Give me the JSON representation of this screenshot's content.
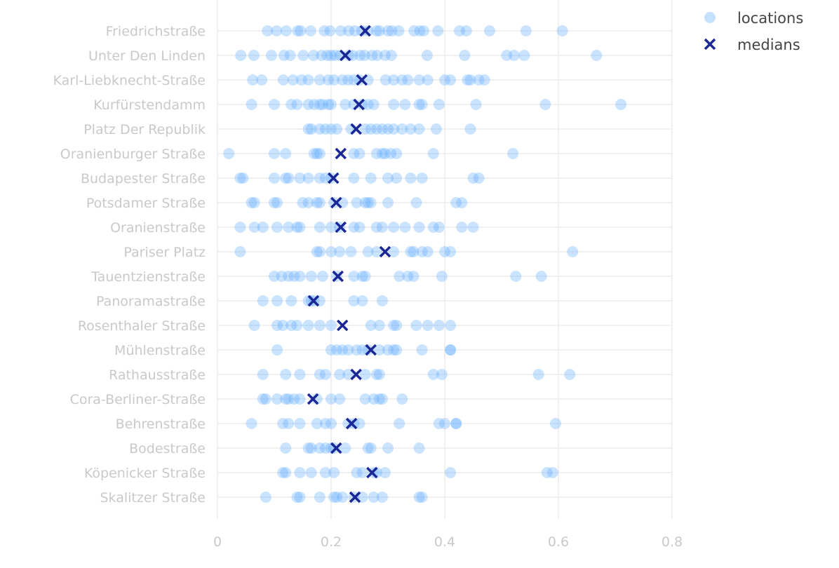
{
  "chart_data": {
    "type": "scatter",
    "title": "",
    "xlabel": "",
    "ylabel": "",
    "xlim": [
      0,
      0.8
    ],
    "xticks": [
      0,
      0.2,
      0.4,
      0.6,
      0.8
    ],
    "xtick_labels": [
      "0",
      "0.2",
      "0.4",
      "0.6",
      "0.8"
    ],
    "grid": true,
    "legend_position": "top-right",
    "legend": [
      "locations",
      "medians"
    ],
    "colors": {
      "locations": "#5aa9ff",
      "medians": "#1c2796",
      "grid": "#ececec",
      "labels": "#c9c9c9"
    },
    "categories": [
      "Friedrichstraße",
      "Unter Den Linden",
      "Karl-Liebknecht-Straße",
      "Kurfürstendamm",
      "Platz Der Republik",
      "Oranienburger Straße",
      "Budapester Straße",
      "Potsdamer Straße",
      "Oranienstraße",
      "Pariser Platz",
      "Tauentzienstraße",
      "Panoramastraße",
      "Rosenthaler Straße",
      "Mühlenstraße",
      "Rathausstraße",
      "Cora-Berliner-Straße",
      "Behrenstraße",
      "Bodestraße",
      "Köpenicker Straße",
      "Skalitzer Straße"
    ],
    "medians": [
      0.26,
      0.225,
      0.254,
      0.249,
      0.244,
      0.217,
      0.204,
      0.209,
      0.217,
      0.295,
      0.212,
      0.169,
      0.22,
      0.27,
      0.244,
      0.168,
      0.236,
      0.209,
      0.272,
      0.242
    ],
    "locations": [
      [
        0.088,
        0.104,
        0.121,
        0.141,
        0.146,
        0.164,
        0.188,
        0.198,
        0.217,
        0.231,
        0.242,
        0.254,
        0.265,
        0.28,
        0.285,
        0.3,
        0.307,
        0.319,
        0.346,
        0.356,
        0.363,
        0.388,
        0.426,
        0.438,
        0.479,
        0.543,
        0.607
      ],
      [
        0.041,
        0.064,
        0.095,
        0.117,
        0.128,
        0.151,
        0.169,
        0.183,
        0.193,
        0.2,
        0.207,
        0.216,
        0.231,
        0.238,
        0.251,
        0.259,
        0.272,
        0.281,
        0.295,
        0.306,
        0.369,
        0.435,
        0.509,
        0.522,
        0.54,
        0.667
      ],
      [
        0.062,
        0.078,
        0.116,
        0.133,
        0.148,
        0.16,
        0.18,
        0.195,
        0.205,
        0.22,
        0.23,
        0.24,
        0.25,
        0.265,
        0.296,
        0.31,
        0.325,
        0.335,
        0.355,
        0.37,
        0.4,
        0.41,
        0.44,
        0.445,
        0.46,
        0.47
      ],
      [
        0.06,
        0.1,
        0.13,
        0.14,
        0.16,
        0.17,
        0.18,
        0.185,
        0.195,
        0.2,
        0.225,
        0.24,
        0.255,
        0.265,
        0.275,
        0.31,
        0.33,
        0.355,
        0.36,
        0.39,
        0.455,
        0.577,
        0.71
      ],
      [
        0.16,
        0.165,
        0.18,
        0.19,
        0.2,
        0.21,
        0.235,
        0.26,
        0.27,
        0.28,
        0.29,
        0.3,
        0.31,
        0.325,
        0.34,
        0.355,
        0.385,
        0.445
      ],
      [
        0.02,
        0.1,
        0.12,
        0.17,
        0.175,
        0.18,
        0.24,
        0.25,
        0.28,
        0.29,
        0.295,
        0.305,
        0.315,
        0.38,
        0.52
      ],
      [
        0.04,
        0.045,
        0.1,
        0.12,
        0.125,
        0.145,
        0.16,
        0.18,
        0.19,
        0.2,
        0.24,
        0.27,
        0.3,
        0.315,
        0.34,
        0.36,
        0.45,
        0.46
      ],
      [
        0.06,
        0.065,
        0.1,
        0.105,
        0.15,
        0.16,
        0.175,
        0.18,
        0.205,
        0.22,
        0.245,
        0.26,
        0.265,
        0.27,
        0.3,
        0.35,
        0.42,
        0.43
      ],
      [
        0.04,
        0.065,
        0.08,
        0.105,
        0.125,
        0.14,
        0.145,
        0.18,
        0.2,
        0.215,
        0.24,
        0.25,
        0.28,
        0.29,
        0.31,
        0.33,
        0.355,
        0.38,
        0.39,
        0.43,
        0.45
      ],
      [
        0.04,
        0.175,
        0.18,
        0.2,
        0.215,
        0.235,
        0.265,
        0.28,
        0.31,
        0.34,
        0.345,
        0.36,
        0.37,
        0.4,
        0.41,
        0.625
      ],
      [
        0.1,
        0.113,
        0.125,
        0.135,
        0.145,
        0.165,
        0.185,
        0.21,
        0.24,
        0.255,
        0.26,
        0.32,
        0.335,
        0.345,
        0.395,
        0.525,
        0.57
      ],
      [
        0.08,
        0.105,
        0.13,
        0.16,
        0.165,
        0.17,
        0.18,
        0.24,
        0.255,
        0.29
      ],
      [
        0.065,
        0.105,
        0.115,
        0.13,
        0.14,
        0.16,
        0.18,
        0.2,
        0.27,
        0.285,
        0.31,
        0.315,
        0.35,
        0.37,
        0.39,
        0.41
      ],
      [
        0.105,
        0.2,
        0.21,
        0.22,
        0.23,
        0.245,
        0.255,
        0.265,
        0.285,
        0.3,
        0.31,
        0.315,
        0.36,
        0.41,
        0.41
      ],
      [
        0.08,
        0.12,
        0.145,
        0.18,
        0.19,
        0.215,
        0.23,
        0.26,
        0.28,
        0.285,
        0.38,
        0.395,
        0.565,
        0.62
      ],
      [
        0.08,
        0.085,
        0.105,
        0.12,
        0.125,
        0.135,
        0.145,
        0.175,
        0.2,
        0.215,
        0.26,
        0.275,
        0.285,
        0.29,
        0.325
      ],
      [
        0.06,
        0.115,
        0.125,
        0.145,
        0.175,
        0.19,
        0.2,
        0.23,
        0.24,
        0.25,
        0.32,
        0.39,
        0.4,
        0.42,
        0.42,
        0.595
      ],
      [
        0.12,
        0.16,
        0.165,
        0.18,
        0.19,
        0.2,
        0.205,
        0.225,
        0.265,
        0.27,
        0.3,
        0.355
      ],
      [
        0.115,
        0.12,
        0.145,
        0.165,
        0.19,
        0.205,
        0.245,
        0.255,
        0.275,
        0.28,
        0.295,
        0.41,
        0.58,
        0.59
      ],
      [
        0.085,
        0.14,
        0.145,
        0.18,
        0.205,
        0.21,
        0.22,
        0.24,
        0.255,
        0.275,
        0.29,
        0.355,
        0.36
      ]
    ]
  }
}
